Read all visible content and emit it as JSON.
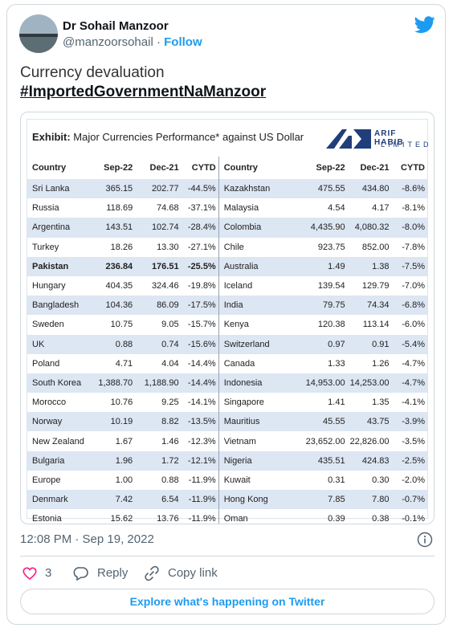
{
  "tweet": {
    "author": {
      "name": "Dr Sohail Manzoor",
      "handle": "@manzoorsohail",
      "separator": "·",
      "follow": "Follow"
    },
    "text": [
      "Currency devaluation",
      "#ImportedGovernmentNaManzoor"
    ],
    "image": {
      "exhibit_label": "Exhibit:",
      "exhibit_title": "Major Currencies Performance* against US Dollar",
      "logo": [
        "ARIF HABIB",
        "LIMITED"
      ],
      "table": {
        "header": [
          "Country",
          "Sep-22",
          "Dec-21",
          "CYTD",
          "Country",
          "Sep-22",
          "Dec-21",
          "CYTD"
        ],
        "rows": [
          [
            "Sri Lanka",
            "365.15",
            "202.77",
            "-44.5%",
            "Kazakhstan",
            "475.55",
            "434.80",
            "-8.6%"
          ],
          [
            "Russia",
            "118.69",
            "74.68",
            "-37.1%",
            "Malaysia",
            "4.54",
            "4.17",
            "-8.1%"
          ],
          [
            "Argentina",
            "143.51",
            "102.74",
            "-28.4%",
            "Colombia",
            "4,435.90",
            "4,080.32",
            "-8.0%"
          ],
          [
            "Turkey",
            "18.26",
            "13.30",
            "-27.1%",
            "Chile",
            "923.75",
            "852.00",
            "-7.8%"
          ],
          [
            "Pakistan",
            "236.84",
            "176.51",
            "-25.5%",
            "Australia",
            "1.49",
            "1.38",
            "-7.5%"
          ],
          [
            "Hungary",
            "404.35",
            "324.46",
            "-19.8%",
            "Iceland",
            "139.54",
            "129.79",
            "-7.0%"
          ],
          [
            "Bangladesh",
            "104.36",
            "86.09",
            "-17.5%",
            "India",
            "79.75",
            "74.34",
            "-6.8%"
          ],
          [
            "Sweden",
            "10.75",
            "9.05",
            "-15.7%",
            "Kenya",
            "120.38",
            "113.14",
            "-6.0%"
          ],
          [
            "UK",
            "0.88",
            "0.74",
            "-15.6%",
            "Switzerland",
            "0.97",
            "0.91",
            "-5.4%"
          ],
          [
            "Poland",
            "4.71",
            "4.04",
            "-14.4%",
            "Canada",
            "1.33",
            "1.26",
            "-4.7%"
          ],
          [
            "South Korea",
            "1,388.70",
            "1,188.90",
            "-14.4%",
            "Indonesia",
            "14,953.00",
            "14,253.00",
            "-4.7%"
          ],
          [
            "Morocco",
            "10.76",
            "9.25",
            "-14.1%",
            "Singapore",
            "1.41",
            "1.35",
            "-4.1%"
          ],
          [
            "Norway",
            "10.19",
            "8.82",
            "-13.5%",
            "Mauritius",
            "45.55",
            "43.75",
            "-3.9%"
          ],
          [
            "New Zealand",
            "1.67",
            "1.46",
            "-12.3%",
            "Vietnam",
            "23,652.00",
            "22,826.00",
            "-3.5%"
          ],
          [
            "Bulgaria",
            "1.96",
            "1.72",
            "-12.1%",
            "Nigeria",
            "435.51",
            "424.83",
            "-2.5%"
          ],
          [
            "Europe",
            "1.00",
            "0.88",
            "-11.9%",
            "Kuwait",
            "0.31",
            "0.30",
            "-2.0%"
          ],
          [
            "Denmark",
            "7.42",
            "6.54",
            "-11.9%",
            "Hong Kong",
            "7.85",
            "7.80",
            "-0.7%"
          ],
          [
            "Estonia",
            "15.62",
            "13.76",
            "-11.9%",
            "Oman",
            "0.39",
            "0.38",
            "-0.1%"
          ]
        ]
      }
    },
    "timestamp": "12:08 PM · Sep 19, 2022",
    "actions": {
      "likes": "3",
      "reply": "Reply",
      "copy_link": "Copy link"
    },
    "explore": "Explore what's happening on Twitter"
  }
}
